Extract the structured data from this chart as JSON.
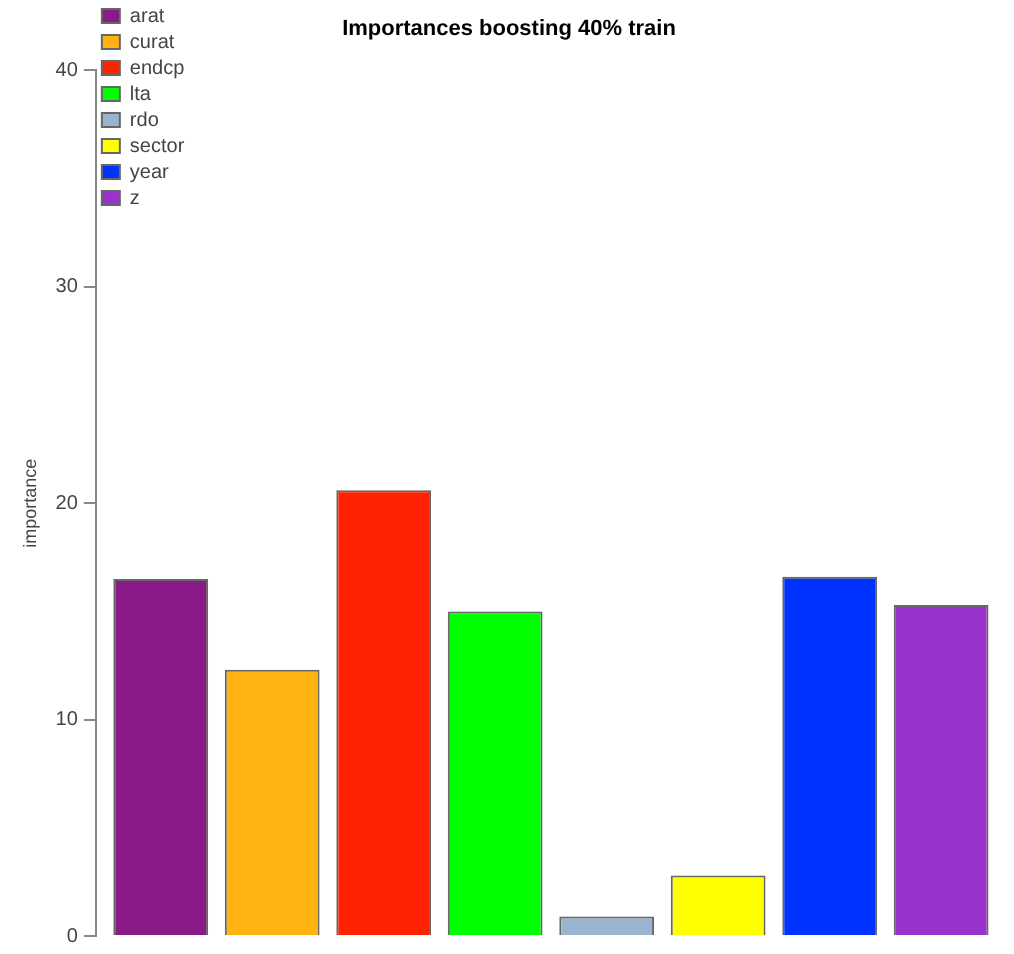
{
  "chart_data": {
    "type": "bar",
    "title": "Importances boosting 40% train",
    "ylabel": "importance",
    "categories": [
      null
    ],
    "series": [
      {
        "name": "arat",
        "color": "#8b1a89",
        "values": [
          16.5
        ]
      },
      {
        "name": "curat",
        "color": "#ffb310",
        "values": [
          12.3
        ]
      },
      {
        "name": "endcp",
        "color": "#ff2200",
        "values": [
          20.6
        ]
      },
      {
        "name": "lta",
        "color": "#00ff00",
        "values": [
          15.0
        ]
      },
      {
        "name": "rdo",
        "color": "#9ab4d0",
        "values": [
          0.9
        ]
      },
      {
        "name": "sector",
        "color": "#ffff00",
        "values": [
          2.8
        ]
      },
      {
        "name": "year",
        "color": "#0033ff",
        "values": [
          16.6
        ]
      },
      {
        "name": "z",
        "color": "#9933cc",
        "values": [
          15.3
        ]
      }
    ],
    "ylim": [
      0,
      40
    ],
    "yticks": [
      0,
      10,
      20,
      30,
      40
    ],
    "legend": "top left",
    "tick_labels": "y"
  }
}
